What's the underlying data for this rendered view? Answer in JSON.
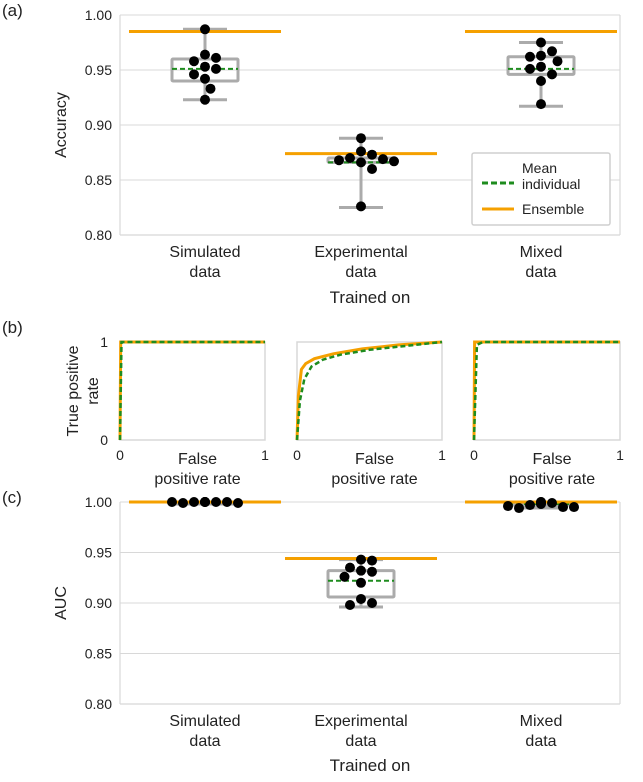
{
  "colors": {
    "ensemble": "#F5A000",
    "mean_individual": "#1E8C1E",
    "box": "#ABABAB",
    "grid": "#D8D8D8",
    "points": "#000000"
  },
  "chart_data": [
    {
      "panel": "(a)",
      "type": "box",
      "ylabel": "Accuracy",
      "xlabel": "Trained on",
      "ylim": [
        0.8,
        1.0
      ],
      "yticks": [
        "0.80",
        "0.85",
        "0.90",
        "0.95",
        "1.00"
      ],
      "categories": [
        [
          "Simulated",
          "data"
        ],
        [
          "Experimental",
          "data"
        ],
        [
          "Mixed",
          "data"
        ]
      ],
      "legend": {
        "placement": "lower-right",
        "entries": [
          [
            "Mean",
            "individual"
          ],
          [
            "Ensemble"
          ]
        ]
      },
      "groups": [
        {
          "whisker_low": 0.923,
          "q1": 0.94,
          "q3": 0.96,
          "whisker_high": 0.987,
          "mean_individual": 0.951,
          "ensemble": 0.985,
          "points": [
            0.987,
            0.964,
            0.961,
            0.958,
            0.953,
            0.951,
            0.946,
            0.942,
            0.933,
            0.923
          ]
        },
        {
          "whisker_low": 0.825,
          "q1": 0.866,
          "q3": 0.87,
          "whisker_high": 0.888,
          "mean_individual": 0.866,
          "ensemble": 0.874,
          "points": [
            0.888,
            0.876,
            0.873,
            0.87,
            0.869,
            0.868,
            0.867,
            0.866,
            0.86,
            0.826
          ]
        },
        {
          "whisker_low": 0.917,
          "q1": 0.946,
          "q3": 0.962,
          "whisker_high": 0.975,
          "mean_individual": 0.951,
          "ensemble": 0.985,
          "points": [
            0.975,
            0.967,
            0.963,
            0.962,
            0.958,
            0.953,
            0.951,
            0.946,
            0.94,
            0.919
          ]
        }
      ]
    },
    {
      "panel": "(b)",
      "type": "line",
      "ylabel": [
        "True positive",
        "rate"
      ],
      "xlabel": [
        "False",
        "positive rate"
      ],
      "xlim": [
        0,
        1
      ],
      "ylim": [
        0,
        1
      ],
      "xticks": [
        "0",
        "1"
      ],
      "yticks": [
        "0",
        "1"
      ],
      "subplots": [
        {
          "ensemble": [
            [
              0,
              0
            ],
            [
              0.005,
              1
            ],
            [
              1,
              1
            ]
          ],
          "mean_individual": [
            [
              0,
              0
            ],
            [
              0.01,
              1
            ],
            [
              1,
              1
            ]
          ]
        },
        {
          "ensemble": [
            [
              0,
              0
            ],
            [
              0.01,
              0.45
            ],
            [
              0.03,
              0.72
            ],
            [
              0.06,
              0.78
            ],
            [
              0.12,
              0.83
            ],
            [
              0.25,
              0.88
            ],
            [
              0.45,
              0.93
            ],
            [
              0.7,
              0.97
            ],
            [
              1,
              1
            ]
          ],
          "mean_individual": [
            [
              0,
              0
            ],
            [
              0.02,
              0.4
            ],
            [
              0.05,
              0.62
            ],
            [
              0.1,
              0.75
            ],
            [
              0.18,
              0.82
            ],
            [
              0.3,
              0.87
            ],
            [
              0.5,
              0.92
            ],
            [
              0.75,
              0.96
            ],
            [
              1,
              1
            ]
          ]
        },
        {
          "ensemble": [
            [
              0,
              0
            ],
            [
              0.004,
              1
            ],
            [
              1,
              1
            ]
          ],
          "mean_individual": [
            [
              0,
              0
            ],
            [
              0.02,
              0.97
            ],
            [
              0.06,
              1
            ],
            [
              1,
              1
            ]
          ]
        }
      ]
    },
    {
      "panel": "(c)",
      "type": "box",
      "ylabel": "AUC",
      "xlabel": "Trained on",
      "ylim": [
        0.8,
        1.0
      ],
      "yticks": [
        "0.80",
        "0.85",
        "0.90",
        "0.95",
        "1.00"
      ],
      "categories": [
        [
          "Simulated",
          "data"
        ],
        [
          "Experimental",
          "data"
        ],
        [
          "Mixed",
          "data"
        ]
      ],
      "groups": [
        {
          "whisker_low": 0.9995,
          "q1": 0.9998,
          "q3": 1.0,
          "whisker_high": 1.0,
          "mean_individual": 1.0,
          "ensemble": 1.0,
          "points": [
            1.0,
            1.0,
            1.0,
            1.0,
            0.999,
            0.999,
            1.0,
            1.0,
            1.0,
            1.0
          ]
        },
        {
          "whisker_low": 0.896,
          "q1": 0.906,
          "q3": 0.932,
          "whisker_high": 0.943,
          "mean_individual": 0.922,
          "ensemble": 0.944,
          "points": [
            0.943,
            0.942,
            0.935,
            0.932,
            0.931,
            0.926,
            0.92,
            0.904,
            0.9,
            0.898
          ]
        },
        {
          "whisker_low": 0.994,
          "q1": 0.997,
          "q3": 1.0,
          "whisker_high": 1.0,
          "mean_individual": 0.998,
          "ensemble": 1.0,
          "points": [
            1.0,
            0.999,
            0.997,
            0.995,
            0.994,
            0.995,
            0.996,
            0.998,
            0.999,
            1.0
          ]
        }
      ]
    }
  ]
}
